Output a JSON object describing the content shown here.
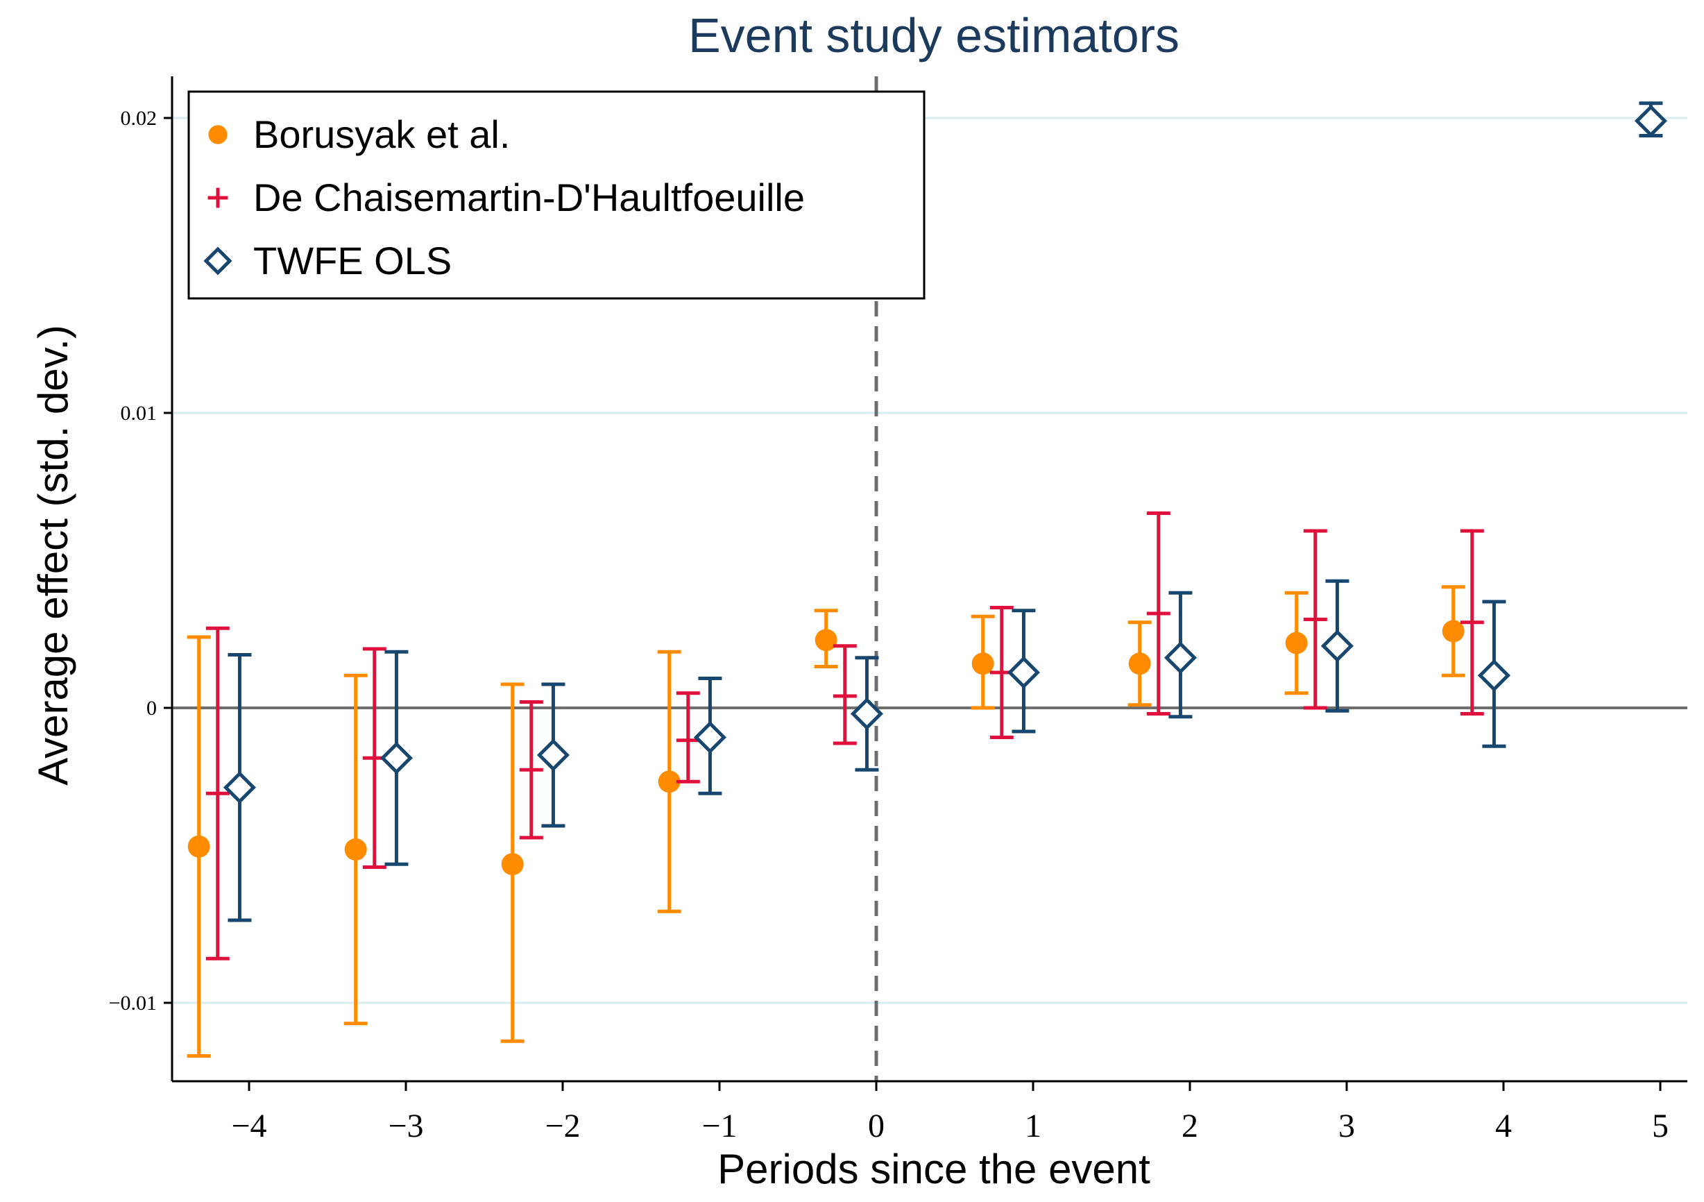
{
  "chart_data": {
    "type": "scatter",
    "title": "Event study estimators",
    "xlabel": "Periods since the event",
    "ylabel": "Average effect (std. dev.)",
    "xlim": [
      -4.5,
      5.2
    ],
    "ylim": [
      -0.0127,
      0.0214
    ],
    "x_ticks": [
      -4,
      -3,
      -2,
      -1,
      0,
      1,
      2,
      3,
      4,
      5
    ],
    "x_tick_labels": [
      "−4",
      "−3",
      "−2",
      "−1",
      "0",
      "1",
      "2",
      "3",
      "4",
      "5"
    ],
    "y_ticks": [
      -0.01,
      0,
      0.01,
      0.02
    ],
    "y_tick_labels": [
      "−0.01",
      "0",
      "0.01",
      "0.02"
    ],
    "grid": "horizontal",
    "reference_lines": {
      "zero_line_y": 0,
      "event_line_x": 0
    },
    "legend": {
      "position": "top-left"
    },
    "series": [
      {
        "name": "Borusyak et al.",
        "color": "#ff8c00",
        "marker": "circle",
        "points": [
          {
            "x": -4.32,
            "y": -0.0047,
            "lo": -0.0118,
            "hi": 0.0024
          },
          {
            "x": -3.32,
            "y": -0.0048,
            "lo": -0.0107,
            "hi": 0.0011
          },
          {
            "x": -2.32,
            "y": -0.0053,
            "lo": -0.0113,
            "hi": 0.0008
          },
          {
            "x": -1.32,
            "y": -0.0025,
            "lo": -0.0069,
            "hi": 0.0019
          },
          {
            "x": -0.32,
            "y": 0.0023,
            "lo": 0.0014,
            "hi": 0.0033
          },
          {
            "x": 0.68,
            "y": 0.0015,
            "lo": 0.0,
            "hi": 0.0031
          },
          {
            "x": 1.68,
            "y": 0.0015,
            "lo": 0.0001,
            "hi": 0.0029
          },
          {
            "x": 2.68,
            "y": 0.0022,
            "lo": 0.0005,
            "hi": 0.0039
          },
          {
            "x": 3.68,
            "y": 0.0026,
            "lo": 0.0011,
            "hi": 0.0041
          }
        ]
      },
      {
        "name": "De Chaisemartin-D'Haultfoeuille",
        "color": "#e0103c",
        "marker": "plus",
        "points": [
          {
            "x": -4.2,
            "y": -0.0029,
            "lo": -0.0085,
            "hi": 0.0027
          },
          {
            "x": -3.2,
            "y": -0.0017,
            "lo": -0.0054,
            "hi": 0.002
          },
          {
            "x": -2.2,
            "y": -0.0021,
            "lo": -0.0044,
            "hi": 0.0002
          },
          {
            "x": -1.2,
            "y": -0.0011,
            "lo": -0.0025,
            "hi": 0.0005
          },
          {
            "x": -0.2,
            "y": 0.0004,
            "lo": -0.0012,
            "hi": 0.0021
          },
          {
            "x": 0.8,
            "y": 0.0012,
            "lo": -0.001,
            "hi": 0.0034
          },
          {
            "x": 1.8,
            "y": 0.0032,
            "lo": -0.0002,
            "hi": 0.0066
          },
          {
            "x": 2.8,
            "y": 0.003,
            "lo": 0.0,
            "hi": 0.006
          },
          {
            "x": 3.8,
            "y": 0.0029,
            "lo": -0.0002,
            "hi": 0.006
          }
        ]
      },
      {
        "name": "TWFE OLS",
        "color": "#17476f",
        "marker": "diamond",
        "points": [
          {
            "x": -4.06,
            "y": -0.0027,
            "lo": -0.0072,
            "hi": 0.0018
          },
          {
            "x": -3.06,
            "y": -0.0017,
            "lo": -0.0053,
            "hi": 0.0019
          },
          {
            "x": -2.06,
            "y": -0.0016,
            "lo": -0.004,
            "hi": 0.0008
          },
          {
            "x": -1.06,
            "y": -0.001,
            "lo": -0.0029,
            "hi": 0.001
          },
          {
            "x": -0.06,
            "y": -0.0002,
            "lo": -0.0021,
            "hi": 0.0017
          },
          {
            "x": 0.94,
            "y": 0.0012,
            "lo": -0.0008,
            "hi": 0.0033
          },
          {
            "x": 1.94,
            "y": 0.0017,
            "lo": -0.0003,
            "hi": 0.0039
          },
          {
            "x": 2.94,
            "y": 0.0021,
            "lo": -0.0001,
            "hi": 0.0043
          },
          {
            "x": 3.94,
            "y": 0.0011,
            "lo": -0.0013,
            "hi": 0.0036
          },
          {
            "x": 4.94,
            "y": 0.0199,
            "lo": 0.0194,
            "hi": 0.0205
          }
        ]
      }
    ]
  }
}
